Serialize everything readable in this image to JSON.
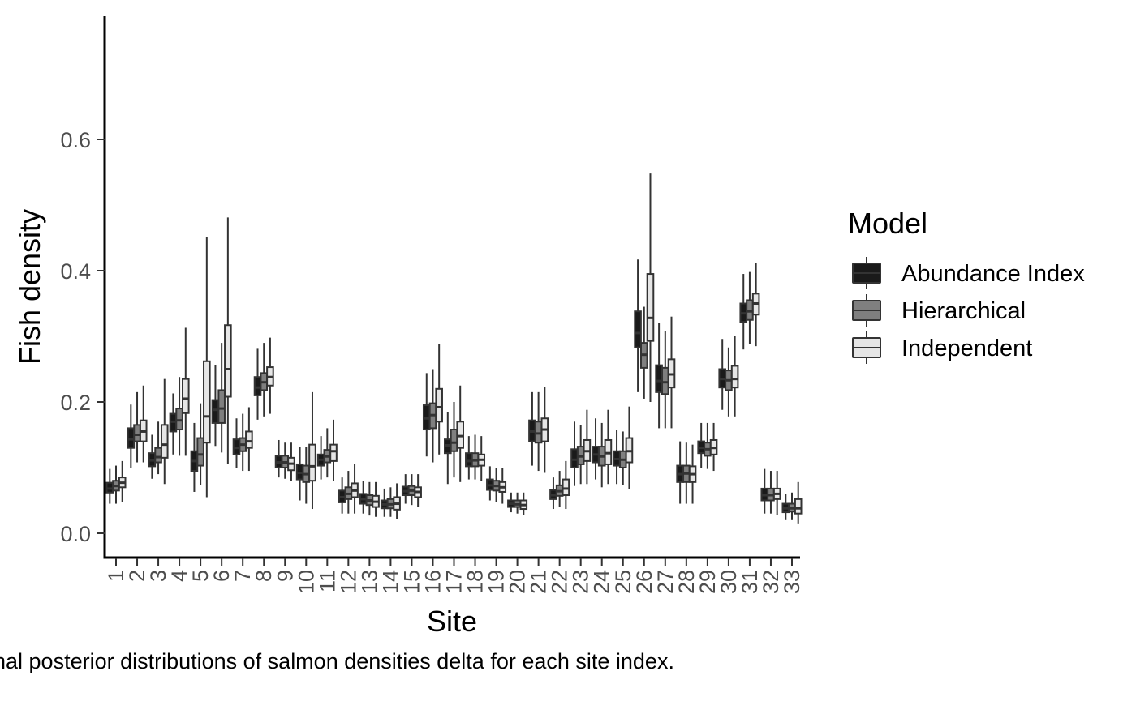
{
  "caption": "nal posterior distributions of salmon densities delta for each site index.",
  "chart_data": {
    "type": "boxplot",
    "xlabel": "Site",
    "ylabel": "Fish density",
    "ylim": [
      -0.035,
      0.785
    ],
    "yticks": [
      0.0,
      0.2,
      0.4,
      0.6
    ],
    "ytick_labels": [
      "0.0",
      "0.2",
      "0.4",
      "0.6"
    ],
    "grid": false,
    "legend_position": "right",
    "legend_title": "Model",
    "categories": [
      "1",
      "2",
      "3",
      "4",
      "5",
      "6",
      "7",
      "8",
      "9",
      "10",
      "11",
      "12",
      "13",
      "14",
      "15",
      "16",
      "17",
      "18",
      "19",
      "20",
      "21",
      "22",
      "23",
      "24",
      "25",
      "26",
      "27",
      "28",
      "29",
      "30",
      "31",
      "32",
      "33"
    ],
    "series": [
      {
        "name": "Abundance Index",
        "color": "#1a1a1a",
        "boxes": [
          {
            "min": 0.045,
            "q1": 0.062,
            "median": 0.068,
            "q3": 0.077,
            "max": 0.098
          },
          {
            "min": 0.1,
            "q1": 0.13,
            "median": 0.143,
            "q3": 0.16,
            "max": 0.196
          },
          {
            "min": 0.083,
            "q1": 0.102,
            "median": 0.111,
            "q3": 0.122,
            "max": 0.15
          },
          {
            "min": 0.12,
            "q1": 0.155,
            "median": 0.17,
            "q3": 0.182,
            "max": 0.213
          },
          {
            "min": 0.063,
            "q1": 0.095,
            "median": 0.11,
            "q3": 0.125,
            "max": 0.168
          },
          {
            "min": 0.133,
            "q1": 0.168,
            "median": 0.188,
            "q3": 0.203,
            "max": 0.256
          },
          {
            "min": 0.1,
            "q1": 0.12,
            "median": 0.13,
            "q3": 0.143,
            "max": 0.175
          },
          {
            "min": 0.173,
            "q1": 0.21,
            "median": 0.222,
            "q3": 0.238,
            "max": 0.281
          },
          {
            "min": 0.085,
            "q1": 0.1,
            "median": 0.108,
            "q3": 0.118,
            "max": 0.142
          },
          {
            "min": 0.05,
            "q1": 0.082,
            "median": 0.092,
            "q3": 0.105,
            "max": 0.132
          },
          {
            "min": 0.082,
            "q1": 0.103,
            "median": 0.112,
            "q3": 0.12,
            "max": 0.148
          },
          {
            "min": 0.03,
            "q1": 0.047,
            "median": 0.055,
            "q3": 0.065,
            "max": 0.085
          },
          {
            "min": 0.03,
            "q1": 0.045,
            "median": 0.052,
            "q3": 0.06,
            "max": 0.08
          },
          {
            "min": 0.025,
            "q1": 0.038,
            "median": 0.044,
            "q3": 0.05,
            "max": 0.068
          },
          {
            "min": 0.045,
            "q1": 0.058,
            "median": 0.064,
            "q3": 0.071,
            "max": 0.09
          },
          {
            "min": 0.117,
            "q1": 0.158,
            "median": 0.175,
            "q3": 0.195,
            "max": 0.244
          },
          {
            "min": 0.075,
            "q1": 0.122,
            "median": 0.134,
            "q3": 0.143,
            "max": 0.185
          },
          {
            "min": 0.082,
            "q1": 0.102,
            "median": 0.11,
            "q3": 0.122,
            "max": 0.148
          },
          {
            "min": 0.05,
            "q1": 0.066,
            "median": 0.073,
            "q3": 0.082,
            "max": 0.102
          },
          {
            "min": 0.032,
            "q1": 0.04,
            "median": 0.045,
            "q3": 0.05,
            "max": 0.062
          },
          {
            "min": 0.103,
            "q1": 0.14,
            "median": 0.155,
            "q3": 0.172,
            "max": 0.215
          },
          {
            "min": 0.037,
            "q1": 0.052,
            "median": 0.058,
            "q3": 0.066,
            "max": 0.085
          },
          {
            "min": 0.072,
            "q1": 0.1,
            "median": 0.112,
            "q3": 0.128,
            "max": 0.17
          },
          {
            "min": 0.082,
            "q1": 0.108,
            "median": 0.12,
            "q3": 0.132,
            "max": 0.175
          },
          {
            "min": 0.075,
            "q1": 0.103,
            "median": 0.113,
            "q3": 0.125,
            "max": 0.158
          },
          {
            "min": 0.215,
            "q1": 0.283,
            "median": 0.305,
            "q3": 0.338,
            "max": 0.417
          },
          {
            "min": 0.16,
            "q1": 0.215,
            "median": 0.232,
            "q3": 0.256,
            "max": 0.321
          },
          {
            "min": 0.045,
            "q1": 0.078,
            "median": 0.09,
            "q3": 0.103,
            "max": 0.14
          },
          {
            "min": 0.1,
            "q1": 0.122,
            "median": 0.13,
            "q3": 0.14,
            "max": 0.168
          },
          {
            "min": 0.188,
            "q1": 0.222,
            "median": 0.235,
            "q3": 0.25,
            "max": 0.296
          },
          {
            "min": 0.28,
            "q1": 0.322,
            "median": 0.335,
            "q3": 0.35,
            "max": 0.395
          },
          {
            "min": 0.03,
            "q1": 0.05,
            "median": 0.058,
            "q3": 0.068,
            "max": 0.098
          },
          {
            "min": 0.02,
            "q1": 0.032,
            "median": 0.038,
            "q3": 0.045,
            "max": 0.06
          }
        ]
      },
      {
        "name": "Hierarchical",
        "color": "#7f7f7f",
        "boxes": [
          {
            "min": 0.045,
            "q1": 0.065,
            "median": 0.072,
            "q3": 0.08,
            "max": 0.103
          },
          {
            "min": 0.108,
            "q1": 0.14,
            "median": 0.15,
            "q3": 0.165,
            "max": 0.215
          },
          {
            "min": 0.09,
            "q1": 0.108,
            "median": 0.116,
            "q3": 0.13,
            "max": 0.17
          },
          {
            "min": 0.118,
            "q1": 0.158,
            "median": 0.172,
            "q3": 0.19,
            "max": 0.238
          },
          {
            "min": 0.073,
            "q1": 0.103,
            "median": 0.12,
            "q3": 0.145,
            "max": 0.198
          },
          {
            "min": 0.123,
            "q1": 0.168,
            "median": 0.19,
            "q3": 0.218,
            "max": 0.29
          },
          {
            "min": 0.095,
            "q1": 0.125,
            "median": 0.135,
            "q3": 0.145,
            "max": 0.182
          },
          {
            "min": 0.178,
            "q1": 0.218,
            "median": 0.23,
            "q3": 0.244,
            "max": 0.29
          },
          {
            "min": 0.083,
            "q1": 0.1,
            "median": 0.108,
            "q3": 0.118,
            "max": 0.138
          },
          {
            "min": 0.045,
            "q1": 0.078,
            "median": 0.09,
            "q3": 0.103,
            "max": 0.132
          },
          {
            "min": 0.085,
            "q1": 0.108,
            "median": 0.117,
            "q3": 0.127,
            "max": 0.16
          },
          {
            "min": 0.03,
            "q1": 0.052,
            "median": 0.06,
            "q3": 0.07,
            "max": 0.095
          },
          {
            "min": 0.027,
            "q1": 0.043,
            "median": 0.05,
            "q3": 0.058,
            "max": 0.078
          },
          {
            "min": 0.025,
            "q1": 0.038,
            "median": 0.044,
            "q3": 0.052,
            "max": 0.07
          },
          {
            "min": 0.043,
            "q1": 0.058,
            "median": 0.065,
            "q3": 0.072,
            "max": 0.09
          },
          {
            "min": 0.108,
            "q1": 0.16,
            "median": 0.18,
            "q3": 0.198,
            "max": 0.25
          },
          {
            "min": 0.085,
            "q1": 0.125,
            "median": 0.138,
            "q3": 0.158,
            "max": 0.2
          },
          {
            "min": 0.082,
            "q1": 0.102,
            "median": 0.111,
            "q3": 0.122,
            "max": 0.15
          },
          {
            "min": 0.048,
            "q1": 0.065,
            "median": 0.072,
            "q3": 0.08,
            "max": 0.1
          },
          {
            "min": 0.03,
            "q1": 0.04,
            "median": 0.044,
            "q3": 0.05,
            "max": 0.062
          },
          {
            "min": 0.095,
            "q1": 0.138,
            "median": 0.152,
            "q3": 0.17,
            "max": 0.215
          },
          {
            "min": 0.04,
            "q1": 0.057,
            "median": 0.064,
            "q3": 0.073,
            "max": 0.095
          },
          {
            "min": 0.075,
            "q1": 0.105,
            "median": 0.117,
            "q3": 0.132,
            "max": 0.165
          },
          {
            "min": 0.07,
            "q1": 0.103,
            "median": 0.117,
            "q3": 0.132,
            "max": 0.168
          },
          {
            "min": 0.073,
            "q1": 0.1,
            "median": 0.112,
            "q3": 0.125,
            "max": 0.155
          },
          {
            "min": 0.205,
            "q1": 0.252,
            "median": 0.272,
            "q3": 0.29,
            "max": 0.345
          },
          {
            "min": 0.16,
            "q1": 0.212,
            "median": 0.23,
            "q3": 0.252,
            "max": 0.308
          },
          {
            "min": 0.045,
            "q1": 0.078,
            "median": 0.091,
            "q3": 0.103,
            "max": 0.138
          },
          {
            "min": 0.098,
            "q1": 0.118,
            "median": 0.128,
            "q3": 0.138,
            "max": 0.168
          },
          {
            "min": 0.178,
            "q1": 0.218,
            "median": 0.233,
            "q3": 0.248,
            "max": 0.283
          },
          {
            "min": 0.288,
            "q1": 0.325,
            "median": 0.338,
            "q3": 0.355,
            "max": 0.398
          },
          {
            "min": 0.03,
            "q1": 0.05,
            "median": 0.058,
            "q3": 0.068,
            "max": 0.095
          },
          {
            "min": 0.02,
            "q1": 0.033,
            "median": 0.038,
            "q3": 0.045,
            "max": 0.062
          }
        ]
      },
      {
        "name": "Independent",
        "color": "#e6e6e6",
        "boxes": [
          {
            "min": 0.048,
            "q1": 0.07,
            "median": 0.077,
            "q3": 0.085,
            "max": 0.11
          },
          {
            "min": 0.108,
            "q1": 0.14,
            "median": 0.155,
            "q3": 0.172,
            "max": 0.225
          },
          {
            "min": 0.075,
            "q1": 0.115,
            "median": 0.135,
            "q3": 0.165,
            "max": 0.235
          },
          {
            "min": 0.118,
            "q1": 0.183,
            "median": 0.205,
            "q3": 0.235,
            "max": 0.313
          },
          {
            "min": 0.055,
            "q1": 0.138,
            "median": 0.178,
            "q3": 0.262,
            "max": 0.451
          },
          {
            "min": 0.105,
            "q1": 0.208,
            "median": 0.25,
            "q3": 0.317,
            "max": 0.481
          },
          {
            "min": 0.095,
            "q1": 0.13,
            "median": 0.14,
            "q3": 0.155,
            "max": 0.192
          },
          {
            "min": 0.182,
            "q1": 0.225,
            "median": 0.238,
            "q3": 0.253,
            "max": 0.298
          },
          {
            "min": 0.08,
            "q1": 0.096,
            "median": 0.106,
            "q3": 0.115,
            "max": 0.138
          },
          {
            "min": 0.037,
            "q1": 0.08,
            "median": 0.102,
            "q3": 0.135,
            "max": 0.215
          },
          {
            "min": 0.08,
            "q1": 0.11,
            "median": 0.125,
            "q3": 0.135,
            "max": 0.173
          },
          {
            "min": 0.03,
            "q1": 0.055,
            "median": 0.065,
            "q3": 0.076,
            "max": 0.105
          },
          {
            "min": 0.025,
            "q1": 0.04,
            "median": 0.048,
            "q3": 0.057,
            "max": 0.078
          },
          {
            "min": 0.022,
            "q1": 0.036,
            "median": 0.045,
            "q3": 0.055,
            "max": 0.076
          },
          {
            "min": 0.04,
            "q1": 0.055,
            "median": 0.063,
            "q3": 0.07,
            "max": 0.09
          },
          {
            "min": 0.12,
            "q1": 0.17,
            "median": 0.192,
            "q3": 0.22,
            "max": 0.288
          },
          {
            "min": 0.078,
            "q1": 0.13,
            "median": 0.148,
            "q3": 0.17,
            "max": 0.225
          },
          {
            "min": 0.08,
            "q1": 0.103,
            "median": 0.112,
            "q3": 0.12,
            "max": 0.148
          },
          {
            "min": 0.045,
            "q1": 0.063,
            "median": 0.07,
            "q3": 0.078,
            "max": 0.1
          },
          {
            "min": 0.028,
            "q1": 0.037,
            "median": 0.043,
            "q3": 0.05,
            "max": 0.062
          },
          {
            "min": 0.092,
            "q1": 0.14,
            "median": 0.158,
            "q3": 0.175,
            "max": 0.223
          },
          {
            "min": 0.037,
            "q1": 0.058,
            "median": 0.068,
            "q3": 0.082,
            "max": 0.11
          },
          {
            "min": 0.075,
            "q1": 0.11,
            "median": 0.125,
            "q3": 0.142,
            "max": 0.188
          },
          {
            "min": 0.075,
            "q1": 0.105,
            "median": 0.122,
            "q3": 0.142,
            "max": 0.188
          },
          {
            "min": 0.067,
            "q1": 0.108,
            "median": 0.125,
            "q3": 0.145,
            "max": 0.193
          },
          {
            "min": 0.2,
            "q1": 0.293,
            "median": 0.328,
            "q3": 0.395,
            "max": 0.548
          },
          {
            "min": 0.16,
            "q1": 0.222,
            "median": 0.242,
            "q3": 0.265,
            "max": 0.33
          },
          {
            "min": 0.045,
            "q1": 0.078,
            "median": 0.09,
            "q3": 0.102,
            "max": 0.135
          },
          {
            "min": 0.095,
            "q1": 0.12,
            "median": 0.13,
            "q3": 0.142,
            "max": 0.168
          },
          {
            "min": 0.178,
            "q1": 0.222,
            "median": 0.235,
            "q3": 0.255,
            "max": 0.3
          },
          {
            "min": 0.285,
            "q1": 0.333,
            "median": 0.35,
            "q3": 0.365,
            "max": 0.412
          },
          {
            "min": 0.028,
            "q1": 0.052,
            "median": 0.06,
            "q3": 0.068,
            "max": 0.095
          },
          {
            "min": 0.015,
            "q1": 0.03,
            "median": 0.038,
            "q3": 0.052,
            "max": 0.078
          }
        ]
      }
    ]
  }
}
